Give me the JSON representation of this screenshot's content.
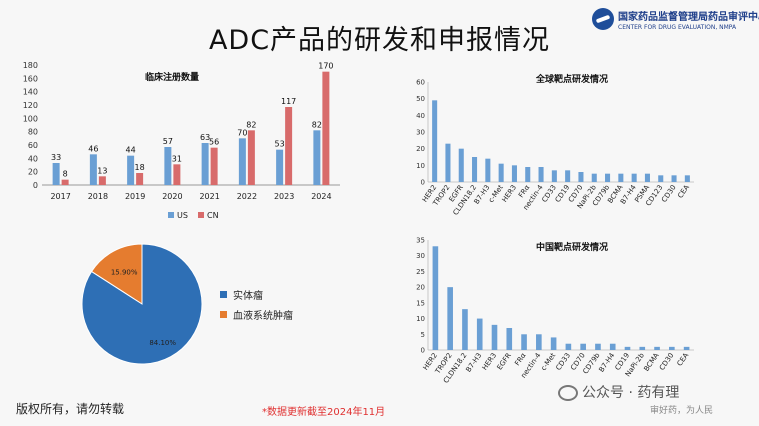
{
  "title": "ADC产品的研发和申报情况",
  "logo": {
    "cn": "国家药品监督管理局药品审评中心",
    "en": "CENTER FOR DRUG EVALUATION, NMPA"
  },
  "colors": {
    "us": "#6a9fd4",
    "cn": "#d86b6b",
    "bar": "#6a9fd4",
    "solid": "#2e6fb5",
    "blood": "#e57c2f"
  },
  "chart_data": [
    {
      "type": "bar",
      "title": "临床注册数量",
      "categories": [
        "2017",
        "2018",
        "2019",
        "2020",
        "2021",
        "2022",
        "2023",
        "2024"
      ],
      "series": [
        {
          "name": "US",
          "values": [
            33,
            46,
            44,
            57,
            63,
            70,
            53,
            82
          ]
        },
        {
          "name": "CN",
          "values": [
            8,
            13,
            18,
            31,
            56,
            82,
            117,
            170
          ]
        }
      ],
      "ylim": [
        0,
        180
      ],
      "yticks": [
        "0",
        "20",
        "40",
        "60",
        "80",
        "100",
        "120",
        "140",
        "160",
        "180"
      ],
      "legend": "bottom"
    },
    {
      "type": "bar",
      "title": "全球靶点研发情况",
      "categories": [
        "HER2",
        "TROP2",
        "EGFR",
        "CLDN18.2",
        "B7-H3",
        "c-Met",
        "HER3",
        "FRα",
        "nectin-4",
        "CD33",
        "CD19",
        "CD70",
        "NaPi-2b",
        "CD79b",
        "BCMA",
        "B7-H4",
        "PSMA",
        "CD123",
        "CD30",
        "CEA"
      ],
      "values": [
        49,
        23,
        20,
        15,
        14,
        11,
        10,
        9,
        9,
        7,
        7,
        6,
        5,
        5,
        5,
        5,
        5,
        4,
        4,
        4
      ],
      "ylim": [
        0,
        60
      ],
      "yticks": [
        "0",
        "10",
        "20",
        "30",
        "40",
        "50",
        "60"
      ]
    },
    {
      "type": "bar",
      "title": "中国靶点研发情况",
      "categories": [
        "HER2",
        "TROP2",
        "CLDN18.2",
        "B7-H3",
        "HER3",
        "EGFR",
        "FRα",
        "nectin-4",
        "c-Met",
        "CD33",
        "CD70",
        "CD79b",
        "B7-H4",
        "CD19",
        "NaPi-2b",
        "BCMA",
        "CD30",
        "CEA"
      ],
      "values": [
        33,
        20,
        13,
        10,
        8,
        7,
        5,
        5,
        4,
        2,
        2,
        2,
        2,
        1,
        1,
        1,
        1,
        1
      ],
      "ylim": [
        0,
        35
      ],
      "yticks": [
        "0",
        "5",
        "10",
        "15",
        "20",
        "25",
        "30",
        "35"
      ]
    },
    {
      "type": "pie",
      "labels": [
        "实体瘤",
        "血液系统肿瘤"
      ],
      "values": [
        84.1,
        15.9
      ],
      "value_labels": [
        "84.10%",
        "15.90%"
      ]
    }
  ],
  "footer": {
    "copyright": "版权所有，请勿转载",
    "note": "*数据更新截至2024年11月",
    "watermark": "公众号 · 药有理",
    "slogan": "审好药，为人民"
  }
}
